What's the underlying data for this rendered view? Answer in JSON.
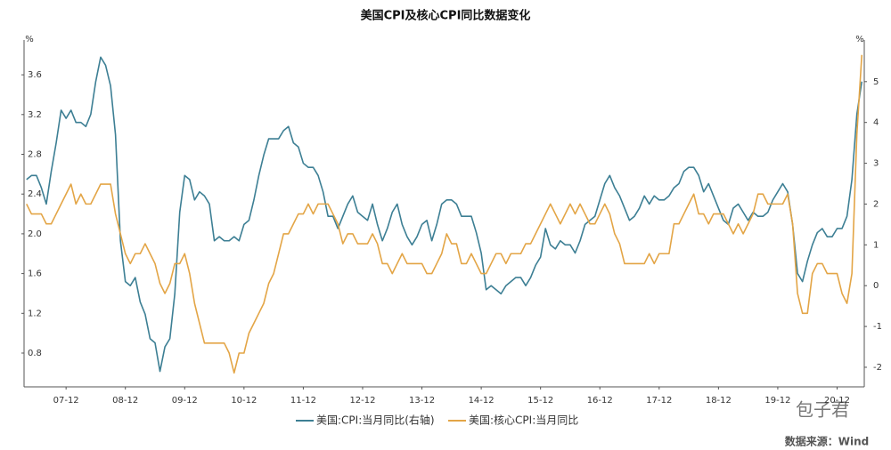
{
  "chart_data": {
    "type": "line",
    "title": "美国CPI及核心CPI同比数据变化",
    "ylabel": "%",
    "y2label": "%",
    "categories": [
      null,
      null,
      null,
      null,
      null,
      null,
      null,
      null,
      "07-12",
      null,
      null,
      null,
      null,
      null,
      null,
      null,
      null,
      null,
      null,
      null,
      "08-12",
      null,
      null,
      null,
      null,
      null,
      null,
      null,
      null,
      null,
      null,
      null,
      "09-12",
      null,
      null,
      null,
      null,
      null,
      null,
      null,
      null,
      null,
      null,
      null,
      "10-12",
      null,
      null,
      null,
      null,
      null,
      null,
      null,
      null,
      null,
      null,
      null,
      "11-12",
      null,
      null,
      null,
      null,
      null,
      null,
      null,
      null,
      null,
      null,
      null,
      "12-12",
      null,
      null,
      null,
      null,
      null,
      null,
      null,
      null,
      null,
      null,
      null,
      "13-12",
      null,
      null,
      null,
      null,
      null,
      null,
      null,
      null,
      null,
      null,
      null,
      "14-12",
      null,
      null,
      null,
      null,
      null,
      null,
      null,
      null,
      null,
      null,
      null,
      "15-12",
      null,
      null,
      null,
      null,
      null,
      null,
      null,
      null,
      null,
      null,
      null,
      "16-12",
      null,
      null,
      null,
      null,
      null,
      null,
      null,
      null,
      null,
      null,
      null,
      "17-12",
      null,
      null,
      null,
      null,
      null,
      null,
      null,
      null,
      null,
      null,
      null,
      "18-12",
      null,
      null,
      null,
      null,
      null,
      null,
      null,
      null,
      null,
      null,
      null,
      "19-12",
      null,
      null,
      null,
      null,
      null,
      null,
      null,
      null,
      null,
      null,
      null,
      "20-12",
      null,
      null,
      null,
      null,
      null
    ],
    "series": [
      {
        "name": "美国:CPI:当月同比(右轴)",
        "color": "#3d7f94",
        "axis": "y2",
        "values": [
          2.6,
          2.7,
          2.7,
          2.4,
          2.0,
          2.8,
          3.5,
          4.3,
          4.1,
          4.3,
          4.0,
          4.0,
          3.9,
          4.2,
          5.0,
          5.6,
          5.4,
          4.9,
          3.7,
          1.1,
          0.1,
          0.0,
          0.2,
          -0.4,
          -0.7,
          -1.3,
          -1.4,
          -2.1,
          -1.5,
          -1.3,
          -0.2,
          1.8,
          2.7,
          2.6,
          2.1,
          2.3,
          2.2,
          2.0,
          1.1,
          1.2,
          1.1,
          1.1,
          1.2,
          1.1,
          1.5,
          1.6,
          2.1,
          2.7,
          3.2,
          3.6,
          3.6,
          3.6,
          3.8,
          3.9,
          3.5,
          3.4,
          3.0,
          2.9,
          2.9,
          2.7,
          2.3,
          1.7,
          1.7,
          1.4,
          1.7,
          2.0,
          2.2,
          1.8,
          1.7,
          1.6,
          2.0,
          1.5,
          1.1,
          1.4,
          1.8,
          2.0,
          1.5,
          1.2,
          1.0,
          1.2,
          1.5,
          1.6,
          1.1,
          1.5,
          2.0,
          2.1,
          2.1,
          2.0,
          1.7,
          1.7,
          1.7,
          1.3,
          0.8,
          -0.1,
          0.0,
          -0.1,
          -0.2,
          0.0,
          0.1,
          0.2,
          0.2,
          0.0,
          0.2,
          0.5,
          0.7,
          1.4,
          1.0,
          0.9,
          1.1,
          1.0,
          1.0,
          0.8,
          1.1,
          1.5,
          1.6,
          1.7,
          2.1,
          2.5,
          2.7,
          2.4,
          2.2,
          1.9,
          1.6,
          1.7,
          1.9,
          2.2,
          2.0,
          2.2,
          2.1,
          2.1,
          2.2,
          2.4,
          2.5,
          2.8,
          2.9,
          2.9,
          2.7,
          2.3,
          2.5,
          2.2,
          1.9,
          1.6,
          1.5,
          1.9,
          2.0,
          1.8,
          1.6,
          1.8,
          1.7,
          1.7,
          1.8,
          2.1,
          2.3,
          2.5,
          2.3,
          1.5,
          0.3,
          0.1,
          0.6,
          1.0,
          1.3,
          1.4,
          1.2,
          1.2,
          1.4,
          1.4,
          1.7,
          2.6,
          4.2,
          5.0
        ]
      },
      {
        "name": "美国:核心CPI:当月同比",
        "color": "#e3a546",
        "values": [
          2.3,
          2.2,
          2.2,
          2.2,
          2.1,
          2.1,
          2.2,
          2.3,
          2.4,
          2.5,
          2.3,
          2.4,
          2.3,
          2.3,
          2.4,
          2.5,
          2.5,
          2.5,
          2.2,
          2.0,
          1.8,
          1.7,
          1.8,
          1.8,
          1.9,
          1.8,
          1.7,
          1.5,
          1.4,
          1.5,
          1.7,
          1.7,
          1.8,
          1.6,
          1.3,
          1.1,
          0.9,
          0.9,
          0.9,
          0.9,
          0.9,
          0.8,
          0.6,
          0.8,
          0.8,
          1.0,
          1.1,
          1.2,
          1.3,
          1.5,
          1.6,
          1.8,
          2.0,
          2.0,
          2.1,
          2.2,
          2.2,
          2.3,
          2.2,
          2.3,
          2.3,
          2.3,
          2.2,
          2.1,
          1.9,
          2.0,
          2.0,
          1.9,
          1.9,
          1.9,
          2.0,
          1.9,
          1.7,
          1.7,
          1.6,
          1.7,
          1.8,
          1.7,
          1.7,
          1.7,
          1.7,
          1.6,
          1.6,
          1.7,
          1.8,
          2.0,
          1.9,
          1.9,
          1.7,
          1.7,
          1.8,
          1.7,
          1.6,
          1.6,
          1.7,
          1.8,
          1.8,
          1.7,
          1.8,
          1.8,
          1.8,
          1.9,
          1.9,
          2.0,
          2.1,
          2.2,
          2.3,
          2.2,
          2.1,
          2.2,
          2.3,
          2.2,
          2.3,
          2.2,
          2.1,
          2.1,
          2.2,
          2.3,
          2.2,
          2.0,
          1.9,
          1.7,
          1.7,
          1.7,
          1.7,
          1.7,
          1.8,
          1.7,
          1.8,
          1.8,
          1.8,
          2.1,
          2.1,
          2.2,
          2.3,
          2.4,
          2.2,
          2.2,
          2.1,
          2.2,
          2.2,
          2.2,
          2.1,
          2.0,
          2.1,
          2.0,
          2.1,
          2.2,
          2.4,
          2.4,
          2.3,
          2.3,
          2.3,
          2.3,
          2.4,
          2.1,
          1.4,
          1.2,
          1.2,
          1.6,
          1.7,
          1.7,
          1.6,
          1.6,
          1.6,
          1.4,
          1.3,
          1.6,
          3.0,
          3.8
        ]
      }
    ],
    "ylim": [
      0.46,
      3.95
    ],
    "yticks": [
      0.8,
      1.2,
      1.6,
      {
        "value": 2,
        "label": "2.0"
      },
      2.4,
      2.8,
      3.2,
      3.6
    ],
    "y2lim": [
      -2.48,
      6.02
    ],
    "y2ticks": [
      -2,
      -1,
      0,
      1,
      2,
      3,
      4,
      5
    ],
    "legend": "bottom",
    "source": "数据来源：Wind",
    "watermark": "包子君"
  }
}
